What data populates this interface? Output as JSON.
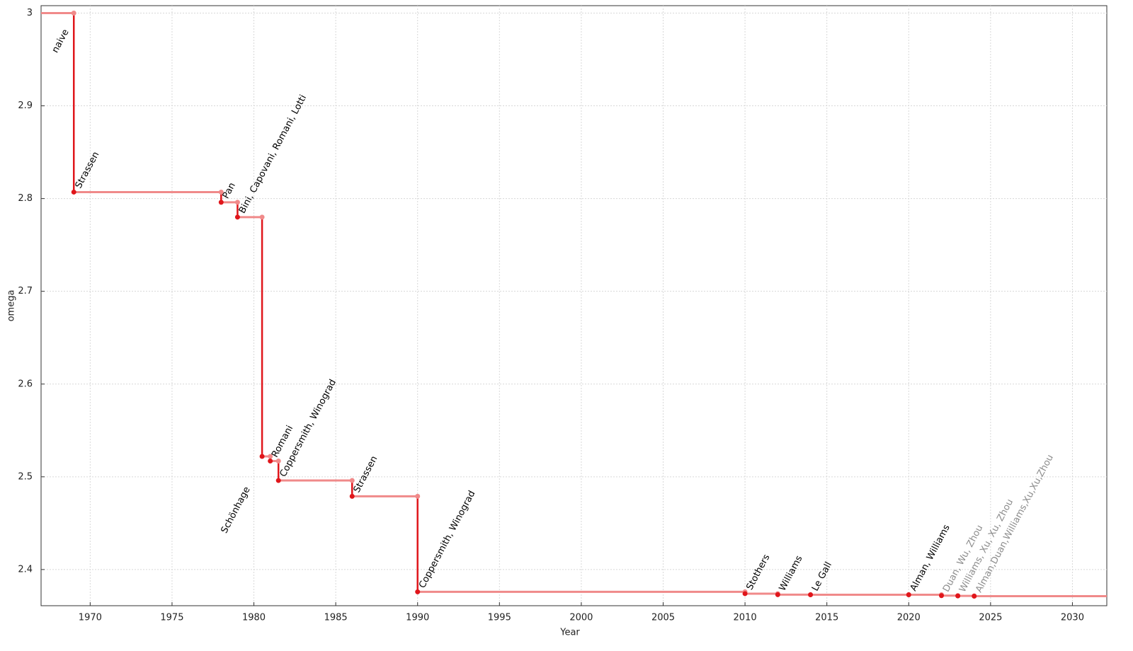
{
  "chart_data": {
    "type": "step",
    "x_label": "Year",
    "y_label": "omega",
    "x": [
      1967,
      1969,
      1978,
      1979,
      1980.5,
      1981,
      1981.5,
      1986,
      1990,
      2010,
      2012,
      2014,
      2020,
      2022,
      2023,
      2024
    ],
    "values": [
      3,
      2.807,
      2.796,
      2.78,
      2.522,
      2.517,
      2.496,
      2.479,
      2.376,
      2.374,
      2.3729,
      2.3728,
      2.3728,
      2.3719,
      2.3716,
      2.3713
    ],
    "labels": [
      "naive",
      "Strassen",
      "Pan",
      "Bini, Capovani, Romani, Lotti",
      "Schönhage",
      "Romani",
      "Coppersmith, Winograd",
      "Strassen",
      "Coppersmith, Winograd",
      "Stothers",
      "Williams",
      "Le Gall",
      "Alman, Williams",
      "Duan, Wu, Zhou",
      "Williams, Xu, Xu, Zhou",
      "Alman,Duan,Williams,Xu,Xu,Zhou"
    ],
    "label_colors": [
      "#000000",
      "#000000",
      "#000000",
      "#000000",
      "#000000",
      "#000000",
      "#000000",
      "#000000",
      "#000000",
      "#000000",
      "#000000",
      "#000000",
      "#000000",
      "#8c8c8c",
      "#8c8c8c",
      "#8c8c8c"
    ],
    "drop_color": "#e0161b",
    "run_color": "#f08a8a",
    "xlim": [
      1967,
      2032.1
    ],
    "ylim": [
      2.361,
      3.008
    ],
    "xticks": [
      1970,
      1975,
      1980,
      1985,
      1990,
      1995,
      2000,
      2005,
      2010,
      2015,
      2020,
      2025,
      2030
    ],
    "yticks": [
      2.4,
      2.5,
      2.6,
      2.7,
      2.8,
      2.9,
      3
    ],
    "grid": true
  }
}
